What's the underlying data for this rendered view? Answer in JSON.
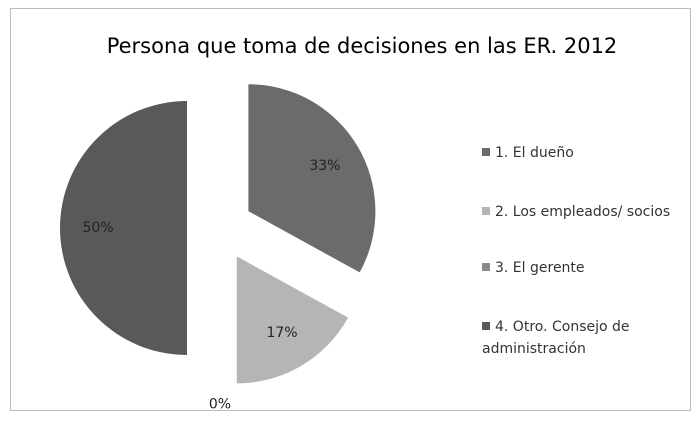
{
  "chart_data": {
    "type": "pie",
    "title": "Persona que toma de decisiones en las ER. 2012",
    "categories": [
      "1. El dueño",
      "2. Los empleados/ socios",
      "3. El gerente",
      "4. Otro. Consejo de administración"
    ],
    "values": [
      33,
      17,
      0,
      50
    ],
    "value_labels": [
      "33%",
      "17%",
      "0%",
      "50%"
    ],
    "colors": [
      "#6b6b6b",
      "#b5b5b5",
      "#8a8a8a",
      "#595959"
    ],
    "legend": "right"
  }
}
